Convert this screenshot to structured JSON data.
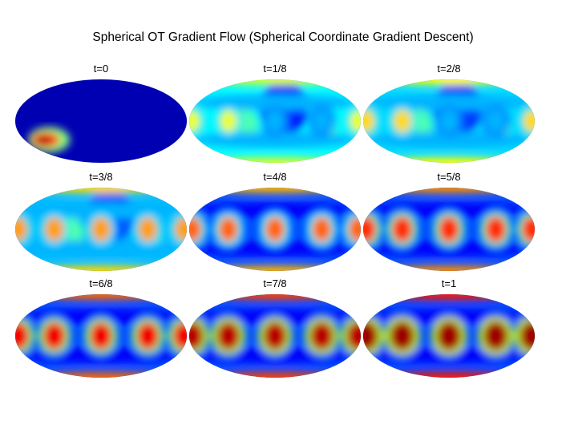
{
  "figure": {
    "title": "Spherical OT Gradient Flow (Spherical Coordinate Gradient Descent)"
  },
  "panels": [
    {
      "label": "t=0"
    },
    {
      "label": "t=1/8"
    },
    {
      "label": "t=2/8"
    },
    {
      "label": "t=3/8"
    },
    {
      "label": "t=4/8"
    },
    {
      "label": "t=5/8"
    },
    {
      "label": "t=6/8"
    },
    {
      "label": "t=7/8"
    },
    {
      "label": "t=1"
    }
  ],
  "colors": {
    "low": "#00008f",
    "mid_low": "#0050ff",
    "mid": "#40ffc0",
    "mid_high": "#ffff00",
    "high": "#ff3000",
    "max": "#8f0000"
  },
  "colormap": "jet",
  "projection": "Mollweide"
}
